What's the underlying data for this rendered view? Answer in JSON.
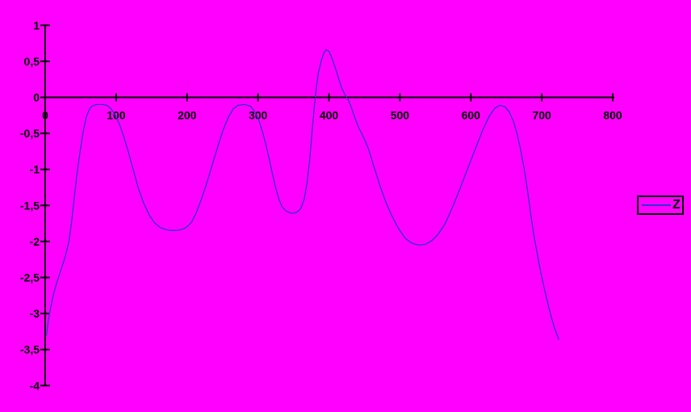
{
  "chart_data": {
    "type": "line",
    "title": "",
    "xlabel": "",
    "ylabel": "",
    "xlim": [
      0,
      800
    ],
    "ylim": [
      -4,
      1
    ],
    "grid": false,
    "legend_position": "right-outside",
    "x_ticks": [
      0,
      100,
      200,
      300,
      400,
      500,
      600,
      700,
      800
    ],
    "x_tick_labels": [
      "0",
      "100",
      "200",
      "300",
      "400",
      "500",
      "600",
      "700",
      "800"
    ],
    "y_ticks": [
      1,
      0.5,
      0,
      -0.5,
      -1,
      -1.5,
      -2,
      -2.5,
      -3,
      -3.5,
      -4
    ],
    "y_tick_labels": [
      "1",
      "0,5",
      "0",
      "-0,5",
      "-1",
      "-1,5",
      "-2",
      "-2,5",
      "-3",
      "-3,5",
      "-4"
    ],
    "colors": {
      "background": "#FF00FF",
      "line": "#3333CC",
      "axis": "#000000",
      "text": "#000000"
    },
    "series": [
      {
        "name": "Z",
        "points": [
          [
            2,
            -3.3
          ],
          [
            4,
            -3.12
          ],
          [
            7,
            -2.95
          ],
          [
            11,
            -2.76
          ],
          [
            16,
            -2.58
          ],
          [
            22,
            -2.4
          ],
          [
            28,
            -2.22
          ],
          [
            33,
            -2.02
          ],
          [
            37,
            -1.75
          ],
          [
            41,
            -1.4
          ],
          [
            45,
            -1.05
          ],
          [
            50,
            -0.7
          ],
          [
            54,
            -0.45
          ],
          [
            58,
            -0.27
          ],
          [
            62,
            -0.17
          ],
          [
            66,
            -0.12
          ],
          [
            72,
            -0.1
          ],
          [
            80,
            -0.1
          ],
          [
            87,
            -0.11
          ],
          [
            93,
            -0.16
          ],
          [
            99,
            -0.25
          ],
          [
            105,
            -0.38
          ],
          [
            111,
            -0.55
          ],
          [
            117,
            -0.75
          ],
          [
            124,
            -1.0
          ],
          [
            131,
            -1.25
          ],
          [
            139,
            -1.47
          ],
          [
            147,
            -1.64
          ],
          [
            155,
            -1.75
          ],
          [
            163,
            -1.81
          ],
          [
            172,
            -1.84
          ],
          [
            181,
            -1.85
          ],
          [
            190,
            -1.84
          ],
          [
            198,
            -1.81
          ],
          [
            206,
            -1.74
          ],
          [
            213,
            -1.6
          ],
          [
            220,
            -1.42
          ],
          [
            228,
            -1.18
          ],
          [
            236,
            -0.92
          ],
          [
            244,
            -0.66
          ],
          [
            251,
            -0.45
          ],
          [
            258,
            -0.28
          ],
          [
            265,
            -0.16
          ],
          [
            272,
            -0.11
          ],
          [
            281,
            -0.1
          ],
          [
            289,
            -0.12
          ],
          [
            295,
            -0.19
          ],
          [
            301,
            -0.31
          ],
          [
            307,
            -0.5
          ],
          [
            313,
            -0.73
          ],
          [
            319,
            -1.0
          ],
          [
            324,
            -1.22
          ],
          [
            329,
            -1.4
          ],
          [
            334,
            -1.52
          ],
          [
            340,
            -1.58
          ],
          [
            347,
            -1.61
          ],
          [
            354,
            -1.6
          ],
          [
            360,
            -1.55
          ],
          [
            365,
            -1.42
          ],
          [
            369,
            -1.2
          ],
          [
            373,
            -0.85
          ],
          [
            376,
            -0.5
          ],
          [
            379,
            -0.18
          ],
          [
            382,
            0.12
          ],
          [
            385,
            0.33
          ],
          [
            389,
            0.5
          ],
          [
            393,
            0.62
          ],
          [
            396,
            0.66
          ],
          [
            400,
            0.64
          ],
          [
            404,
            0.55
          ],
          [
            408,
            0.44
          ],
          [
            413,
            0.28
          ],
          [
            418,
            0.13
          ],
          [
            423,
            0.03
          ],
          [
            427,
            -0.03
          ],
          [
            431,
            -0.12
          ],
          [
            436,
            -0.27
          ],
          [
            442,
            -0.42
          ],
          [
            449,
            -0.56
          ],
          [
            456,
            -0.72
          ],
          [
            463,
            -0.95
          ],
          [
            471,
            -1.2
          ],
          [
            480,
            -1.45
          ],
          [
            489,
            -1.65
          ],
          [
            498,
            -1.82
          ],
          [
            507,
            -1.95
          ],
          [
            516,
            -2.02
          ],
          [
            526,
            -2.05
          ],
          [
            536,
            -2.04
          ],
          [
            545,
            -1.99
          ],
          [
            554,
            -1.9
          ],
          [
            564,
            -1.75
          ],
          [
            574,
            -1.53
          ],
          [
            585,
            -1.26
          ],
          [
            596,
            -0.98
          ],
          [
            607,
            -0.7
          ],
          [
            617,
            -0.45
          ],
          [
            626,
            -0.26
          ],
          [
            634,
            -0.15
          ],
          [
            641,
            -0.11
          ],
          [
            648,
            -0.13
          ],
          [
            654,
            -0.2
          ],
          [
            660,
            -0.33
          ],
          [
            665,
            -0.5
          ],
          [
            670,
            -0.72
          ],
          [
            675,
            -0.98
          ],
          [
            680,
            -1.3
          ],
          [
            685,
            -1.65
          ],
          [
            689,
            -1.92
          ],
          [
            693,
            -2.14
          ],
          [
            698,
            -2.4
          ],
          [
            703,
            -2.63
          ],
          [
            708,
            -2.84
          ],
          [
            713,
            -3.03
          ],
          [
            718,
            -3.2
          ],
          [
            724,
            -3.36
          ]
        ]
      }
    ]
  },
  "legend": {
    "label": "Z"
  }
}
